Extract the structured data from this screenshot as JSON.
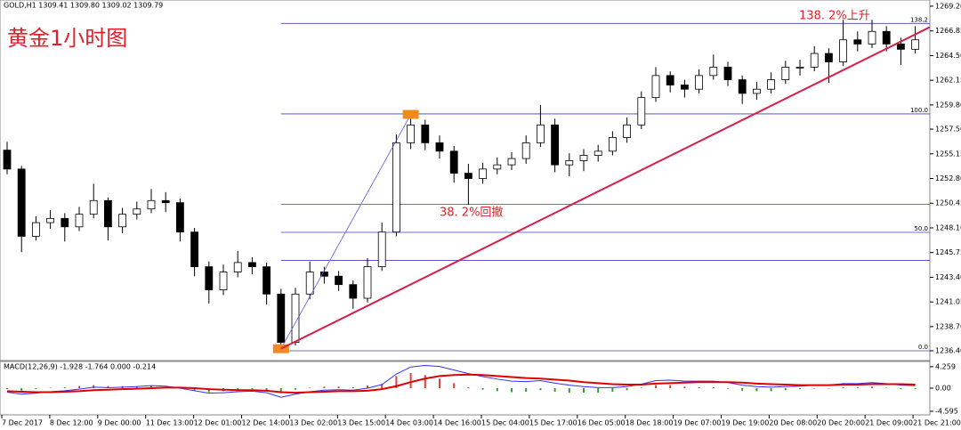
{
  "chart_data": {
    "type": "candlestick",
    "header": "GOLD,H1  1309.41 1309.80 1309.02 1309.79",
    "title": "黄金1小时图",
    "annotations": [
      "138. 2%上升",
      "38. 2%回撤"
    ],
    "up_color": "#ffffff",
    "down_color": "#000000",
    "outline_color": "#000000",
    "ylim": [
      1235.47,
      1269.79
    ],
    "yticks": [
      {
        "value": 1269.2,
        "label": "1269.20"
      },
      {
        "value": 1266.85,
        "label": "1266.85"
      },
      {
        "value": 1264.5,
        "label": "1264.50"
      },
      {
        "value": 1262.15,
        "label": "1262.15"
      },
      {
        "value": 1259.8,
        "label": "1259.80"
      },
      {
        "value": 1257.5,
        "label": "1257.50"
      },
      {
        "value": 1255.15,
        "label": "1255.15"
      },
      {
        "value": 1252.8,
        "label": "1252.80"
      },
      {
        "value": 1250.45,
        "label": "1250.45"
      },
      {
        "value": 1248.1,
        "label": "1248.10"
      },
      {
        "value": 1245.75,
        "label": "1245.75"
      },
      {
        "value": 1243.4,
        "label": "1243.40"
      },
      {
        "value": 1241.05,
        "label": "1241.05"
      },
      {
        "value": 1238.7,
        "label": "1238.70"
      },
      {
        "value": 1236.4,
        "label": "1236.40"
      }
    ],
    "x_labels": [
      "7 Dec 2017",
      "8 Dec 12:00",
      "9 Dec 00:00",
      "11 Dec 13:00",
      "12 Dec 01:00",
      "12 Dec 14:00",
      "13 Dec 02:00",
      "13 Dec 15:00",
      "14 Dec 03:00",
      "14 Dec 16:00",
      "15 Dec 04:00",
      "15 Dec 17:00",
      "16 Dec 05:00",
      "18 Dec 18:00",
      "19 Dec 07:00",
      "19 Dec 19:00",
      "20 Dec 08:00",
      "20 Dec 20:00",
      "21 Dec 09:00",
      "21 Dec 21:00"
    ],
    "candles": [
      [
        1255.5,
        1256.3,
        1253.2,
        1253.7
      ],
      [
        1253.7,
        1254.0,
        1245.8,
        1247.3
      ],
      [
        1247.3,
        1249.2,
        1246.9,
        1248.6
      ],
      [
        1248.6,
        1249.8,
        1248.0,
        1249.0
      ],
      [
        1249.0,
        1249.5,
        1246.8,
        1248.2
      ],
      [
        1248.2,
        1250.1,
        1247.8,
        1249.4
      ],
      [
        1249.4,
        1252.3,
        1249.0,
        1250.7
      ],
      [
        1250.7,
        1251.0,
        1246.9,
        1248.2
      ],
      [
        1248.2,
        1250.0,
        1247.6,
        1249.4
      ],
      [
        1249.4,
        1250.6,
        1248.9,
        1249.9
      ],
      [
        1249.9,
        1251.8,
        1249.5,
        1250.7
      ],
      [
        1250.7,
        1251.5,
        1249.6,
        1250.5
      ],
      [
        1250.5,
        1250.9,
        1246.8,
        1247.7
      ],
      [
        1247.7,
        1248.1,
        1243.5,
        1244.4
      ],
      [
        1244.4,
        1244.9,
        1240.9,
        1242.2
      ],
      [
        1242.2,
        1244.6,
        1241.7,
        1243.9
      ],
      [
        1243.9,
        1245.9,
        1243.4,
        1244.8
      ],
      [
        1244.8,
        1245.3,
        1243.7,
        1244.4
      ],
      [
        1244.4,
        1244.8,
        1240.8,
        1241.8
      ],
      [
        1241.8,
        1242.3,
        1236.4,
        1237.2
      ],
      [
        1237.2,
        1242.4,
        1236.9,
        1241.8
      ],
      [
        1241.8,
        1244.9,
        1241.3,
        1243.9
      ],
      [
        1243.9,
        1244.4,
        1242.8,
        1243.5
      ],
      [
        1243.5,
        1244.0,
        1242.1,
        1242.7
      ],
      [
        1242.7,
        1243.1,
        1240.4,
        1241.4
      ],
      [
        1241.4,
        1245.2,
        1241.0,
        1244.4
      ],
      [
        1244.4,
        1248.6,
        1244.0,
        1247.7
      ],
      [
        1247.7,
        1257.0,
        1247.3,
        1256.2
      ],
      [
        1256.2,
        1258.9,
        1255.6,
        1257.9
      ],
      [
        1257.9,
        1258.4,
        1255.5,
        1256.2
      ],
      [
        1256.2,
        1256.9,
        1254.7,
        1255.4
      ],
      [
        1255.4,
        1255.9,
        1252.4,
        1253.3
      ],
      [
        1253.3,
        1254.2,
        1250.3,
        1252.8
      ],
      [
        1252.8,
        1254.3,
        1252.3,
        1253.7
      ],
      [
        1253.7,
        1254.8,
        1253.2,
        1254.1
      ],
      [
        1254.1,
        1255.3,
        1253.6,
        1254.7
      ],
      [
        1254.7,
        1256.9,
        1254.2,
        1256.2
      ],
      [
        1256.2,
        1259.8,
        1255.8,
        1257.9
      ],
      [
        1257.9,
        1258.5,
        1253.4,
        1254.1
      ],
      [
        1254.1,
        1255.2,
        1253.0,
        1254.5
      ],
      [
        1254.5,
        1255.6,
        1253.5,
        1255.0
      ],
      [
        1255.0,
        1256.0,
        1254.4,
        1255.4
      ],
      [
        1255.4,
        1257.3,
        1255.0,
        1256.7
      ],
      [
        1256.7,
        1258.6,
        1256.2,
        1257.9
      ],
      [
        1257.9,
        1261.1,
        1257.5,
        1260.5
      ],
      [
        1260.5,
        1263.4,
        1260.1,
        1262.6
      ],
      [
        1262.6,
        1263.0,
        1261.0,
        1261.7
      ],
      [
        1261.7,
        1262.2,
        1260.5,
        1261.3
      ],
      [
        1261.3,
        1263.2,
        1260.9,
        1262.6
      ],
      [
        1262.6,
        1264.6,
        1262.2,
        1263.4
      ],
      [
        1263.4,
        1263.9,
        1261.6,
        1262.2
      ],
      [
        1262.2,
        1262.6,
        1259.9,
        1260.9
      ],
      [
        1260.9,
        1262.0,
        1260.3,
        1261.3
      ],
      [
        1261.3,
        1262.9,
        1260.9,
        1262.2
      ],
      [
        1262.2,
        1264.0,
        1261.8,
        1263.4
      ],
      [
        1263.4,
        1264.1,
        1262.6,
        1263.4
      ],
      [
        1263.4,
        1265.4,
        1263.0,
        1264.7
      ],
      [
        1264.7,
        1265.2,
        1261.9,
        1263.9
      ],
      [
        1263.9,
        1267.9,
        1263.5,
        1266.0
      ],
      [
        1266.0,
        1266.8,
        1264.9,
        1265.6
      ],
      [
        1265.6,
        1267.9,
        1265.2,
        1266.8
      ],
      [
        1266.8,
        1267.3,
        1264.9,
        1265.6
      ],
      [
        1265.6,
        1266.2,
        1263.6,
        1265.1
      ],
      [
        1265.1,
        1267.3,
        1264.7,
        1266.0
      ]
    ],
    "fib_color": "#4040c0",
    "fib_levels": [
      {
        "value": 1267.56,
        "label": "138.2"
      },
      {
        "value": 1258.95,
        "label": "100.0"
      },
      {
        "value": 1250.34
      },
      {
        "value": 1247.67,
        "label": "50.0"
      },
      {
        "value": 1245.01
      },
      {
        "value": 1236.4,
        "label": "0.0"
      }
    ],
    "trendline": {
      "from": [
        19,
        1236.6
      ],
      "to": [
        64,
        1267.2
      ],
      "color": "#d81e4a"
    },
    "swing": {
      "from": [
        19,
        1236.6
      ],
      "to": [
        28,
        1258.9
      ],
      "color": "#5a5ae0",
      "marker_color": "#f08a1c"
    },
    "macd": {
      "label": "MACD(12,26,9) -1.928 -1.764 0.000 -0.214",
      "ylim": [
        -5.3,
        5.3
      ],
      "yticks": [
        4.259,
        {
          "value": 0,
          "label": "0.00"
        },
        -4.595
      ],
      "main_color": "#3030ff",
      "signal_color": "#e00000",
      "pos_color": "#e04040",
      "neg_color": "#30a030",
      "main": [
        -0.8,
        -1.2,
        -1.0,
        -0.7,
        -0.5,
        -0.2,
        0.2,
        0.1,
        0.2,
        0.3,
        0.5,
        0.4,
        0.0,
        -0.5,
        -1.0,
        -0.9,
        -0.7,
        -0.6,
        -0.9,
        -1.8,
        -1.2,
        -0.7,
        -0.4,
        -0.3,
        -0.4,
        0.0,
        0.7,
        2.8,
        4.2,
        4.5,
        4.3,
        3.6,
        2.9,
        2.3,
        1.8,
        1.4,
        1.3,
        1.5,
        1.0,
        0.6,
        0.3,
        0.1,
        0.1,
        0.3,
        0.8,
        1.5,
        1.6,
        1.4,
        1.4,
        1.4,
        1.1,
        0.6,
        0.3,
        0.2,
        0.3,
        0.4,
        0.6,
        0.6,
        0.9,
        0.9,
        1.1,
        0.9,
        0.6,
        0.5
      ],
      "signal": [
        -0.6,
        -0.7,
        -0.8,
        -0.8,
        -0.7,
        -0.6,
        -0.4,
        -0.3,
        -0.2,
        -0.1,
        0.0,
        0.1,
        0.1,
        0.0,
        -0.2,
        -0.3,
        -0.4,
        -0.4,
        -0.5,
        -0.8,
        -0.9,
        -0.8,
        -0.7,
        -0.6,
        -0.6,
        -0.5,
        -0.2,
        0.4,
        1.2,
        1.9,
        2.4,
        2.6,
        2.7,
        2.6,
        2.4,
        2.2,
        2.0,
        1.9,
        1.7,
        1.5,
        1.2,
        1.0,
        0.8,
        0.7,
        0.7,
        0.9,
        1.0,
        1.1,
        1.2,
        1.2,
        1.2,
        1.1,
        0.9,
        0.8,
        0.7,
        0.6,
        0.6,
        0.6,
        0.7,
        0.7,
        0.8,
        0.8,
        0.8,
        0.7
      ],
      "histogram": [
        -0.2,
        -0.5,
        -0.2,
        0.1,
        0.2,
        0.4,
        0.6,
        0.4,
        0.4,
        0.4,
        0.5,
        0.3,
        -0.1,
        -0.5,
        -0.8,
        -0.6,
        -0.3,
        -0.2,
        -0.4,
        -1.0,
        -0.3,
        0.1,
        0.3,
        0.3,
        0.2,
        0.5,
        0.9,
        2.4,
        3.0,
        2.6,
        1.9,
        1.0,
        0.2,
        -0.3,
        -0.6,
        -0.8,
        -0.7,
        -0.4,
        -0.7,
        -0.9,
        -0.9,
        -0.9,
        -0.7,
        -0.4,
        0.1,
        0.6,
        0.6,
        0.3,
        0.2,
        0.2,
        -0.1,
        -0.5,
        -0.6,
        -0.6,
        -0.4,
        -0.2,
        0.0,
        0.0,
        0.2,
        0.2,
        0.3,
        0.1,
        -0.2,
        -0.2
      ]
    }
  }
}
